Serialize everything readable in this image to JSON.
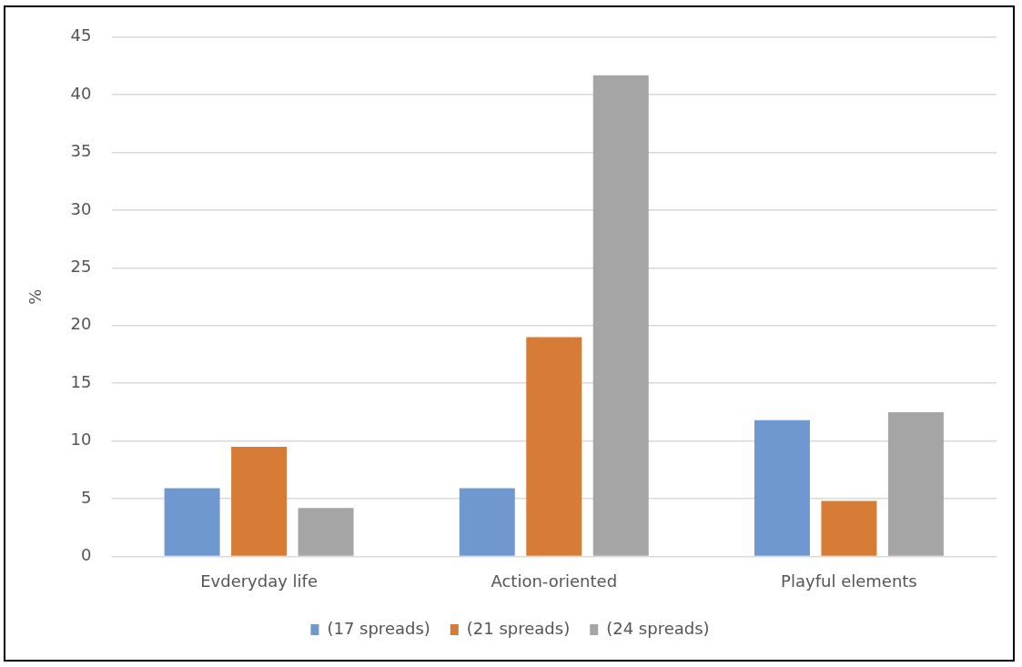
{
  "chart_data": {
    "type": "bar",
    "ylabel": "%",
    "categories": [
      "Evderyday life",
      "Action-oriented",
      "Playful elements"
    ],
    "series": [
      {
        "name": "(17 spreads)",
        "color": "#6f97d0",
        "values": [
          5.9,
          5.9,
          11.8
        ]
      },
      {
        "name": "(21 spreads)",
        "color": "#d77c36",
        "values": [
          9.5,
          19,
          4.8
        ]
      },
      {
        "name": "(24 spreads)",
        "color": "#a5a5a5",
        "values": [
          4.2,
          41.7,
          12.5
        ]
      }
    ],
    "ylim": [
      0,
      45
    ],
    "yticks": [
      0,
      5,
      10,
      15,
      20,
      25,
      30,
      35,
      40,
      45
    ],
    "grid": "y",
    "legend": "bottom"
  }
}
